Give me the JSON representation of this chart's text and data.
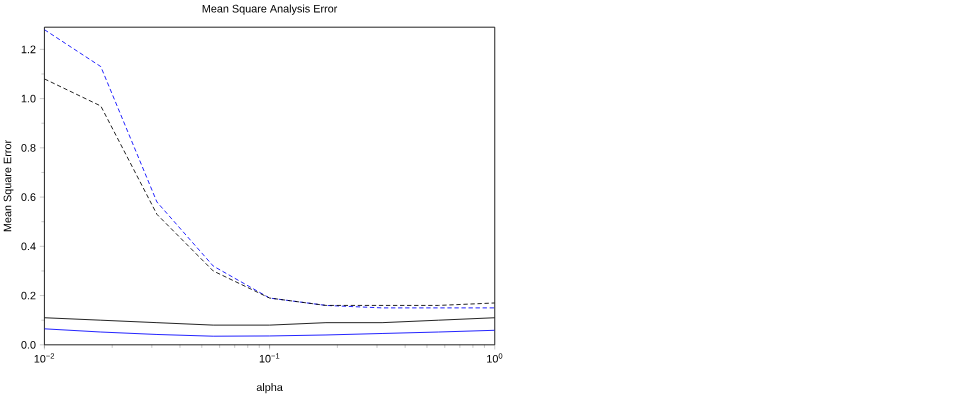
{
  "chart_data": {
    "type": "line",
    "title": "Mean Square Analysis Error",
    "xlabel": "alpha",
    "ylabel": "Mean Square Error",
    "log": "x",
    "grid": false,
    "marker": "none",
    "x": [
      0.01,
      0.0178,
      0.0316,
      0.0562,
      0.1,
      0.178,
      0.316,
      0.562,
      1
    ],
    "xlim": [
      0.01,
      1
    ],
    "xticks": [
      {
        "value": 0.01,
        "label": "10$^{−2}$"
      },
      {
        "value": 0.1,
        "label": "10$^{−1}$"
      },
      {
        "value": 1,
        "label": "10$^{0}$"
      }
    ],
    "ylim": [
      0,
      1.29
    ],
    "yticks": [
      {
        "value": 0,
        "label": "0.0"
      },
      0.2,
      0.4,
      0.6,
      0.8,
      {
        "value": 1,
        "label": "1.0"
      },
      1.2
    ],
    "series": [
      {
        "color": "#0000ff",
        "line_style": "dashed",
        "values": [
          1.28,
          1.13,
          0.58,
          0.32,
          0.19,
          0.16,
          0.15,
          0.15,
          0.15
        ]
      },
      {
        "color": "#000000",
        "line_style": "dashed",
        "values": [
          1.08,
          0.97,
          0.53,
          0.3,
          0.19,
          0.16,
          0.16,
          0.16,
          0.17
        ]
      },
      {
        "color": "#000000",
        "line_style": "solid",
        "values": [
          0.11,
          0.1,
          0.09,
          0.08,
          0.08,
          0.09,
          0.09,
          0.1,
          0.11
        ]
      },
      {
        "color": "#0000ff",
        "line_style": "solid",
        "values": [
          0.065,
          0.052,
          0.042,
          0.035,
          0.036,
          0.04,
          0.046,
          0.052,
          0.059
        ]
      }
    ]
  }
}
